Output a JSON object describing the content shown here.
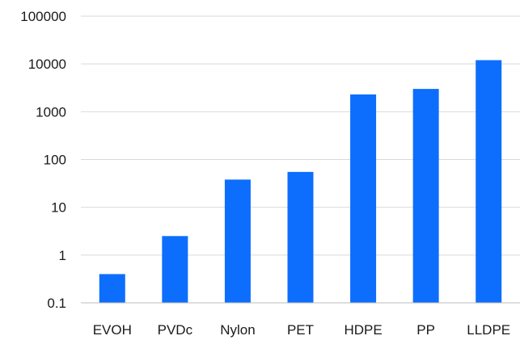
{
  "chart_data": {
    "type": "bar",
    "categories": [
      "EVOH",
      "PVDc",
      "Nylon",
      "PET",
      "HDPE",
      "PP",
      "LLDPE"
    ],
    "values": [
      0.4,
      2.5,
      38,
      55,
      2300,
      3000,
      12000
    ],
    "yscale": "log",
    "ylim": [
      0.1,
      100000
    ],
    "yticks": [
      0.1,
      1,
      10,
      100,
      1000,
      10000,
      100000
    ],
    "ytick_labels": [
      "0.1",
      "1",
      "10",
      "100",
      "1000",
      "10000",
      "100000"
    ],
    "grid": true,
    "bar_color": "#0d6efd",
    "title": "",
    "xlabel": "",
    "ylabel": ""
  }
}
